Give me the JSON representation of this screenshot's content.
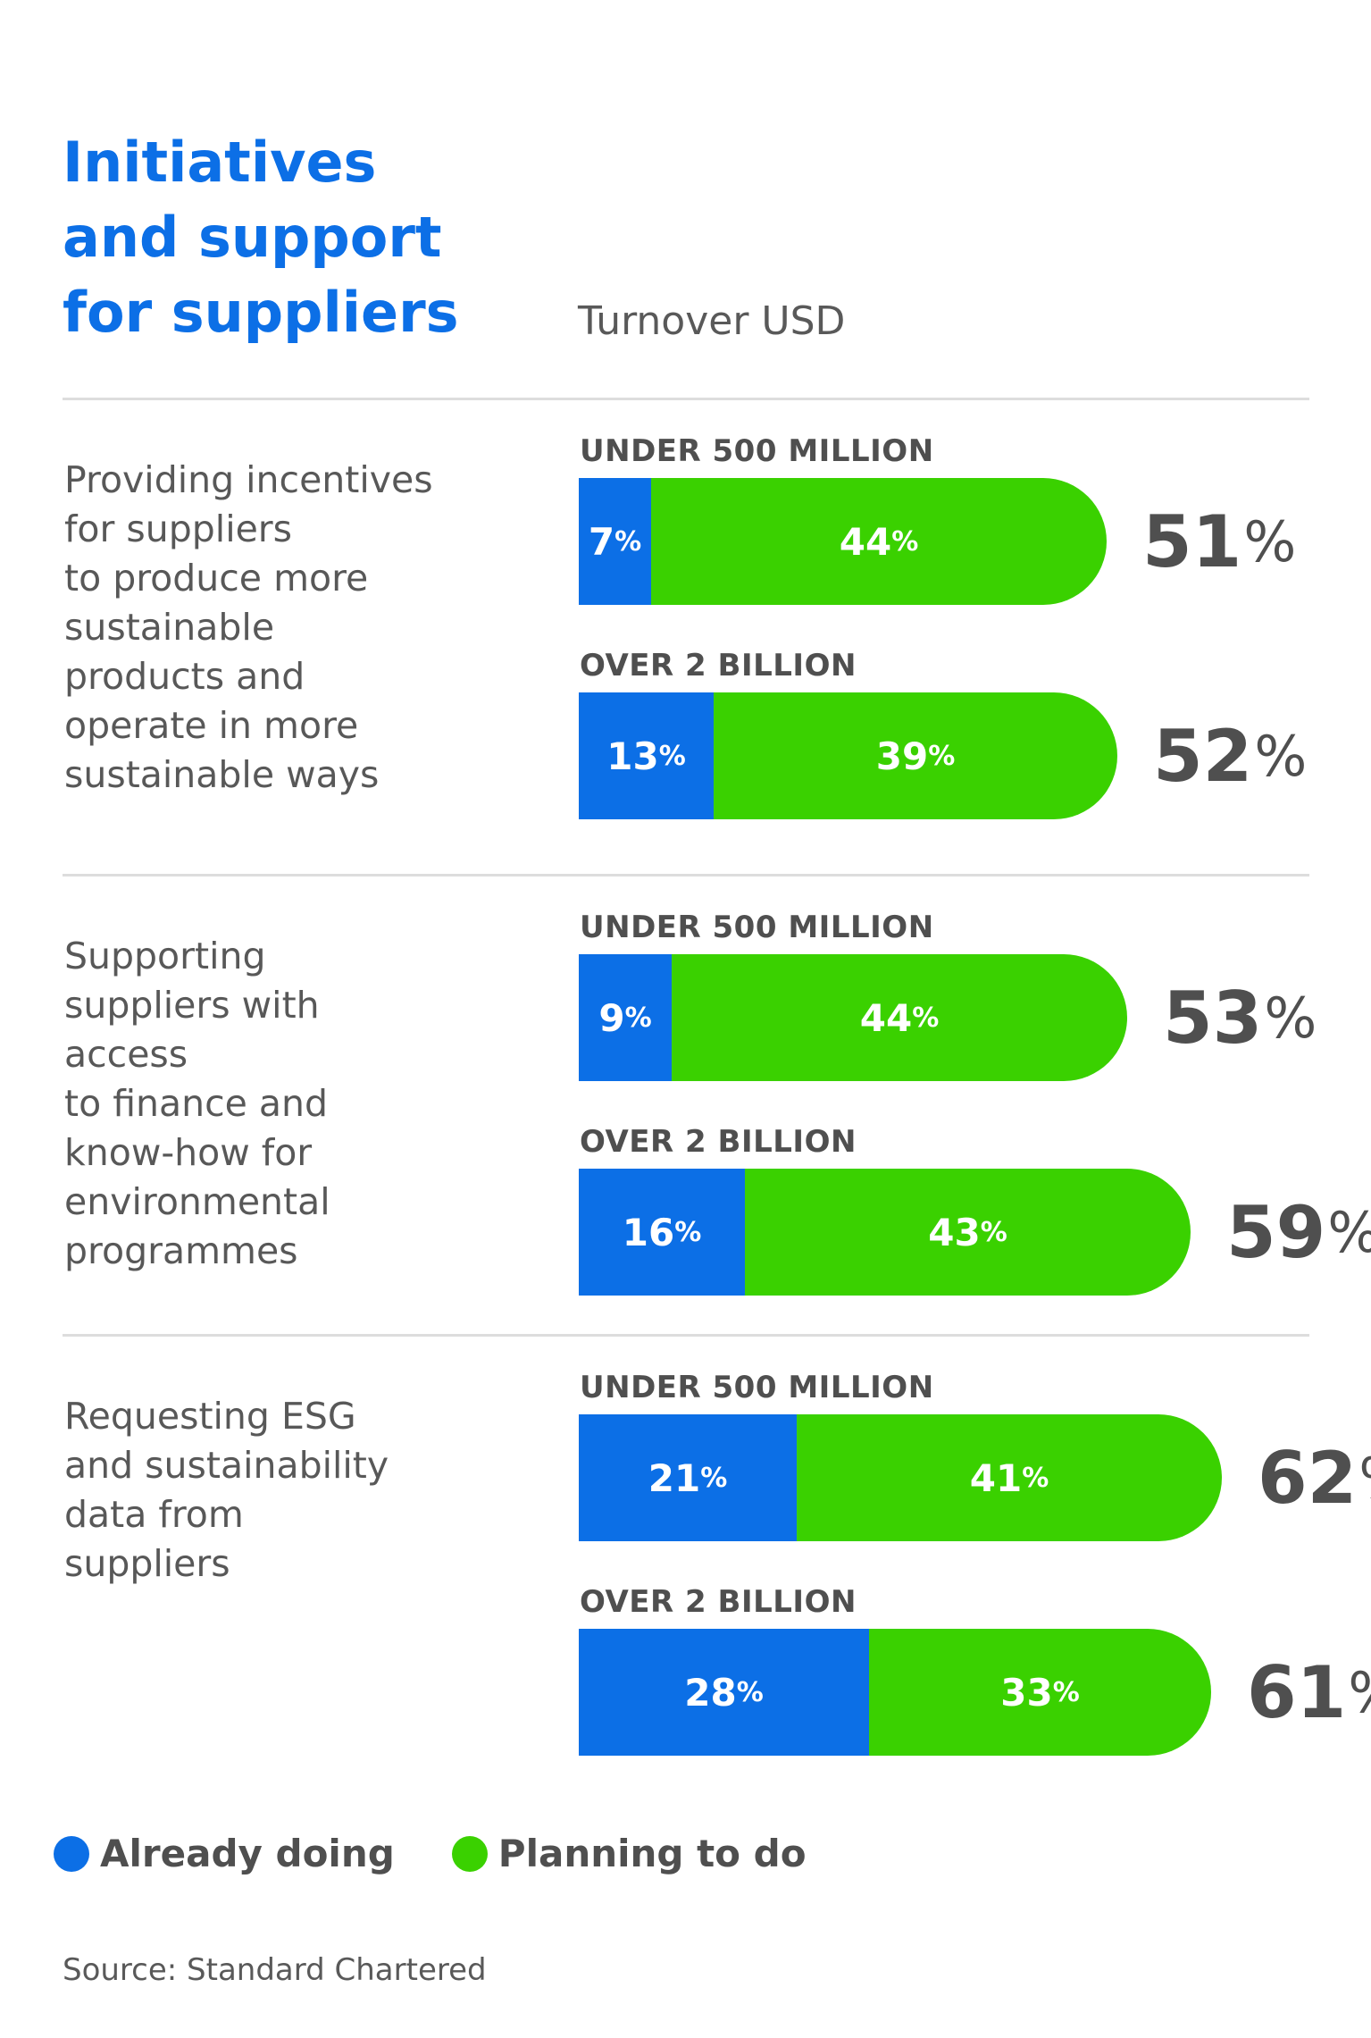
{
  "title": "Initiatives\nand support\nfor suppliers",
  "subtitle": "Turnover USD",
  "source": "Source: Standard Chartered",
  "colors": {
    "already": "#0c6fe6",
    "planning": "#3ad100"
  },
  "legend": {
    "already": "Already doing",
    "planning": "Planning to do"
  },
  "chart_data": {
    "type": "bar",
    "orientation": "horizontal",
    "stacked": true,
    "title": "Initiatives and support for suppliers",
    "subtitle": "Turnover USD",
    "groups": [
      {
        "label": "Providing incentives\nfor suppliers\nto produce more\nsustainable\nproducts and\noperate in more\nsustainable ways",
        "rows": [
          {
            "segment": "UNDER 500 MILLION",
            "already": 7,
            "planning": 44,
            "total": 51
          },
          {
            "segment": "OVER 2 BILLION",
            "already": 13,
            "planning": 39,
            "total": 52
          }
        ]
      },
      {
        "label": "Supporting\nsuppliers with\naccess\nto finance and\nknow-how for\nenvironmental\nprogrammes",
        "rows": [
          {
            "segment": "UNDER 500 MILLION",
            "already": 9,
            "planning": 44,
            "total": 53
          },
          {
            "segment": "OVER 2 BILLION",
            "already": 16,
            "planning": 43,
            "total": 59
          }
        ]
      },
      {
        "label": "Requesting ESG\nand sustainability\ndata from\nsuppliers",
        "rows": [
          {
            "segment": "UNDER 500 MILLION",
            "already": 21,
            "planning": 41,
            "total": 62
          },
          {
            "segment": "OVER 2 BILLION",
            "already": 28,
            "planning": 33,
            "total": 61
          }
        ]
      }
    ],
    "series": [
      {
        "name": "Already doing"
      },
      {
        "name": "Planning to do"
      }
    ],
    "unit": "%",
    "legend_position": "bottom-left"
  }
}
